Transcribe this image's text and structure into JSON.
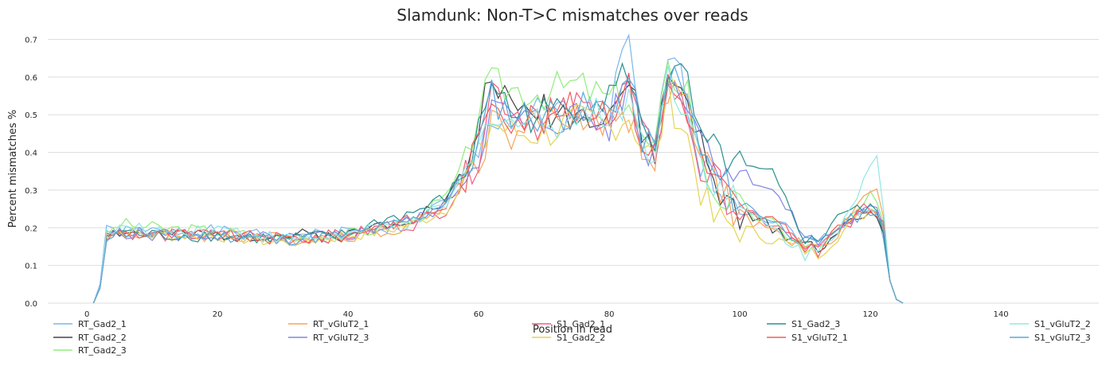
{
  "chart_data": {
    "type": "line",
    "title": "Slamdunk: Non-T>C mismatches over reads",
    "xlabel": "Position in read",
    "ylabel": "Percent mismatches %",
    "xlim": [
      -6,
      155
    ],
    "ylim": [
      0,
      0.72
    ],
    "xticks": [
      0,
      20,
      40,
      60,
      80,
      100,
      120,
      140
    ],
    "yticks": [
      0.0,
      0.1,
      0.2,
      0.3,
      0.4,
      0.5,
      0.6,
      0.7
    ],
    "grid": "horizontal",
    "legend_position": "bottom",
    "knots_x": [
      1,
      2,
      3,
      5,
      10,
      20,
      30,
      40,
      45,
      50,
      55,
      58,
      60,
      62,
      65,
      70,
      75,
      80,
      83,
      85,
      87,
      89,
      92,
      94,
      96,
      100,
      105,
      110,
      112,
      115,
      120,
      121,
      122,
      123,
      124,
      125
    ],
    "series": [
      {
        "name": "RT_Gad2_1",
        "color": "#7cb5ec",
        "seed": 1,
        "values": [
          0.0,
          0.05,
          0.19,
          0.19,
          0.19,
          0.19,
          0.17,
          0.19,
          0.2,
          0.22,
          0.27,
          0.34,
          0.4,
          0.5,
          0.48,
          0.5,
          0.5,
          0.51,
          0.69,
          0.44,
          0.4,
          0.67,
          0.54,
          0.38,
          0.32,
          0.26,
          0.22,
          0.17,
          0.16,
          0.2,
          0.26,
          0.24,
          0.18,
          0.06,
          0.01,
          0.0
        ]
      },
      {
        "name": "RT_Gad2_2",
        "color": "#434348",
        "seed": 2,
        "values": [
          0.0,
          0.04,
          0.18,
          0.19,
          0.18,
          0.18,
          0.18,
          0.18,
          0.21,
          0.23,
          0.27,
          0.36,
          0.47,
          0.63,
          0.5,
          0.52,
          0.5,
          0.52,
          0.58,
          0.45,
          0.4,
          0.6,
          0.55,
          0.42,
          0.3,
          0.24,
          0.2,
          0.16,
          0.15,
          0.19,
          0.24,
          0.24,
          0.2,
          0.06,
          0.01,
          0.0
        ]
      },
      {
        "name": "RT_Gad2_3",
        "color": "#90ed7d",
        "seed": 3,
        "values": [
          0.0,
          0.04,
          0.18,
          0.21,
          0.2,
          0.19,
          0.17,
          0.18,
          0.2,
          0.22,
          0.28,
          0.37,
          0.52,
          0.58,
          0.57,
          0.56,
          0.58,
          0.54,
          0.55,
          0.43,
          0.41,
          0.61,
          0.58,
          0.38,
          0.3,
          0.25,
          0.21,
          0.15,
          0.15,
          0.19,
          0.28,
          0.26,
          0.2,
          0.06,
          0.01,
          0.0
        ]
      },
      {
        "name": "RT_vGluT2_1",
        "color": "#f7a35c",
        "seed": 4,
        "values": [
          0.0,
          0.04,
          0.18,
          0.19,
          0.18,
          0.18,
          0.17,
          0.18,
          0.19,
          0.21,
          0.26,
          0.33,
          0.38,
          0.48,
          0.45,
          0.48,
          0.5,
          0.48,
          0.5,
          0.42,
          0.38,
          0.57,
          0.52,
          0.38,
          0.33,
          0.23,
          0.19,
          0.15,
          0.14,
          0.19,
          0.3,
          0.31,
          0.22,
          0.06,
          0.01,
          0.0
        ]
      },
      {
        "name": "RT_vGluT2_3",
        "color": "#8085e9",
        "seed": 5,
        "values": [
          0.0,
          0.04,
          0.18,
          0.19,
          0.18,
          0.18,
          0.17,
          0.18,
          0.2,
          0.22,
          0.26,
          0.34,
          0.4,
          0.52,
          0.49,
          0.48,
          0.5,
          0.47,
          0.58,
          0.41,
          0.4,
          0.59,
          0.55,
          0.46,
          0.38,
          0.35,
          0.3,
          0.18,
          0.16,
          0.2,
          0.25,
          0.24,
          0.2,
          0.06,
          0.01,
          0.0
        ]
      },
      {
        "name": "S1_Gad2_1",
        "color": "#f15c80",
        "seed": 6,
        "values": [
          0.0,
          0.04,
          0.18,
          0.19,
          0.18,
          0.18,
          0.17,
          0.18,
          0.2,
          0.21,
          0.25,
          0.33,
          0.4,
          0.58,
          0.52,
          0.47,
          0.52,
          0.5,
          0.58,
          0.44,
          0.4,
          0.59,
          0.5,
          0.35,
          0.33,
          0.24,
          0.21,
          0.15,
          0.14,
          0.19,
          0.26,
          0.24,
          0.2,
          0.06,
          0.01,
          0.0
        ]
      },
      {
        "name": "S1_Gad2_2",
        "color": "#e4d354",
        "seed": 7,
        "values": [
          0.0,
          0.04,
          0.18,
          0.19,
          0.18,
          0.18,
          0.16,
          0.18,
          0.19,
          0.21,
          0.25,
          0.33,
          0.38,
          0.48,
          0.45,
          0.45,
          0.48,
          0.47,
          0.5,
          0.42,
          0.38,
          0.55,
          0.44,
          0.3,
          0.22,
          0.2,
          0.17,
          0.14,
          0.13,
          0.18,
          0.25,
          0.25,
          0.21,
          0.06,
          0.01,
          0.0
        ]
      },
      {
        "name": "S1_Gad2_3",
        "color": "#2b908f",
        "seed": 8,
        "values": [
          0.0,
          0.04,
          0.18,
          0.19,
          0.18,
          0.18,
          0.17,
          0.18,
          0.22,
          0.24,
          0.28,
          0.35,
          0.45,
          0.6,
          0.5,
          0.5,
          0.52,
          0.55,
          0.62,
          0.45,
          0.43,
          0.62,
          0.58,
          0.42,
          0.4,
          0.36,
          0.34,
          0.17,
          0.16,
          0.24,
          0.25,
          0.24,
          0.2,
          0.06,
          0.01,
          0.0
        ]
      },
      {
        "name": "S1_vGluT2_1",
        "color": "#f45b5b",
        "seed": 9,
        "values": [
          0.0,
          0.04,
          0.18,
          0.19,
          0.18,
          0.18,
          0.17,
          0.18,
          0.21,
          0.22,
          0.26,
          0.34,
          0.42,
          0.56,
          0.5,
          0.49,
          0.52,
          0.52,
          0.57,
          0.43,
          0.4,
          0.58,
          0.52,
          0.38,
          0.34,
          0.24,
          0.22,
          0.15,
          0.14,
          0.2,
          0.25,
          0.24,
          0.2,
          0.06,
          0.01,
          0.0
        ]
      },
      {
        "name": "S1_vGluT2_2",
        "color": "#91e8e1",
        "seed": 10,
        "values": [
          0.0,
          0.04,
          0.18,
          0.2,
          0.19,
          0.2,
          0.17,
          0.18,
          0.2,
          0.21,
          0.26,
          0.34,
          0.4,
          0.52,
          0.48,
          0.48,
          0.5,
          0.5,
          0.55,
          0.43,
          0.4,
          0.6,
          0.52,
          0.38,
          0.33,
          0.25,
          0.2,
          0.13,
          0.14,
          0.2,
          0.36,
          0.38,
          0.24,
          0.06,
          0.01,
          0.0
        ]
      },
      {
        "name": "S1_vGluT2_3",
        "color": "#5ba9d9",
        "seed": 11,
        "values": [
          0.0,
          0.04,
          0.18,
          0.19,
          0.18,
          0.18,
          0.17,
          0.18,
          0.2,
          0.22,
          0.27,
          0.35,
          0.42,
          0.55,
          0.5,
          0.5,
          0.51,
          0.52,
          0.6,
          0.44,
          0.4,
          0.62,
          0.54,
          0.4,
          0.34,
          0.27,
          0.22,
          0.16,
          0.15,
          0.2,
          0.25,
          0.24,
          0.2,
          0.06,
          0.01,
          0.0
        ]
      }
    ]
  }
}
